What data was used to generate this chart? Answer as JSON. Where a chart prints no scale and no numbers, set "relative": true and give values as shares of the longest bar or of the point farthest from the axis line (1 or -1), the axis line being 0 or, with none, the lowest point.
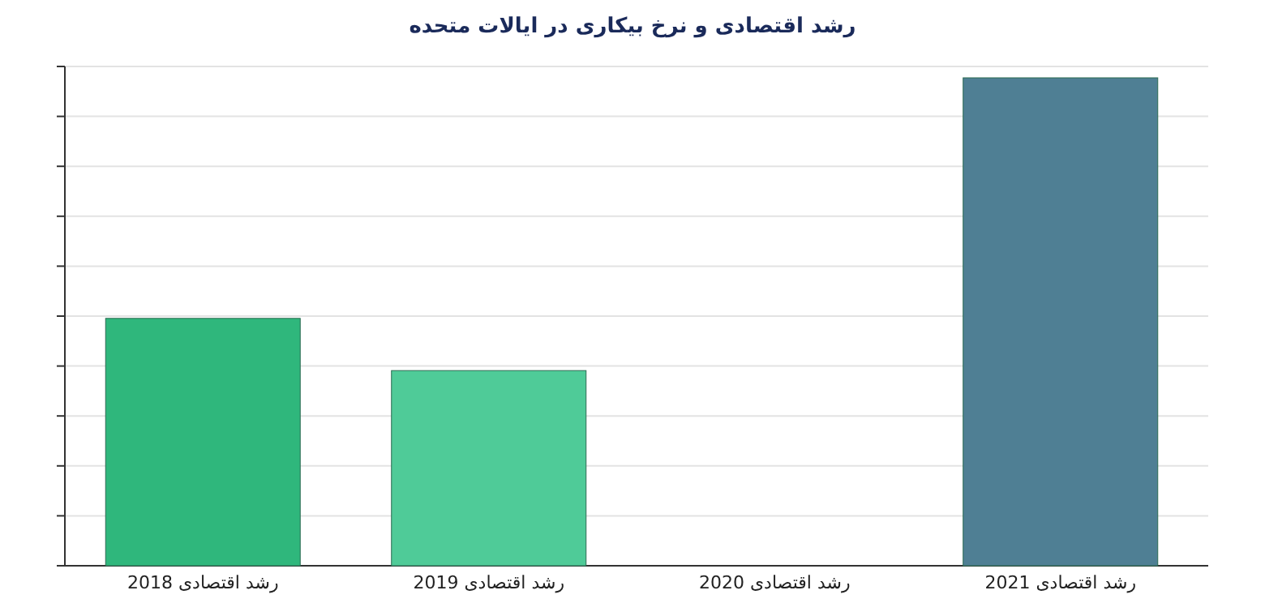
{
  "chart_data": {
    "type": "bar",
    "title": "رشد اقتصادی و نرخ بیکاری در ایالات متحده",
    "categories": [
      "رشد اقتصادی 2018",
      "رشد اقتصادی 2019",
      "رشد اقتصادی 2020",
      "رشد اقتصادی 2021"
    ],
    "values": [
      0.507,
      0.4,
      null,
      1
    ],
    "colors": [
      "#2fb77c",
      "#4fcb98",
      null,
      "#4f7f94"
    ],
    "relative": true,
    "grid": "y"
  }
}
